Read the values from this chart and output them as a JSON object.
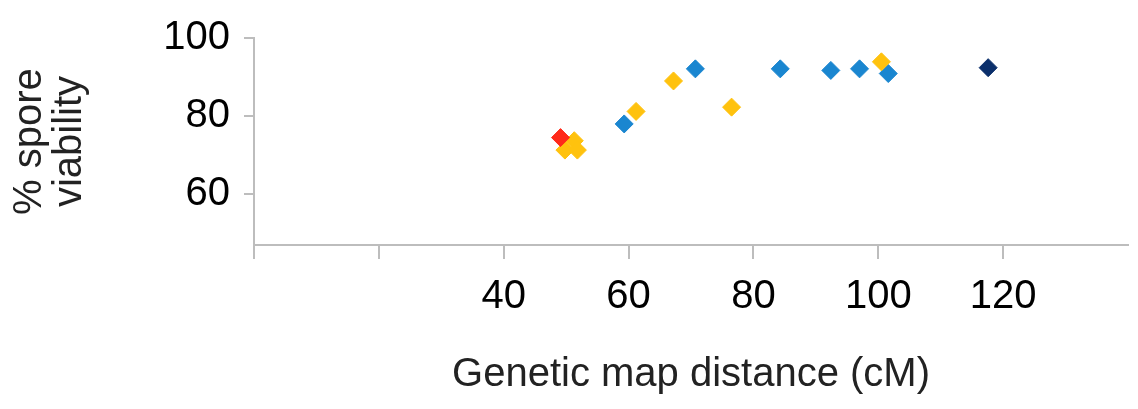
{
  "chart_data": {
    "type": "scatter",
    "xlabel": "Genetic map distance (cM)",
    "ylabel": "% spore viability",
    "xlim": [
      0,
      140
    ],
    "xticks": [
      {
        "value": 0,
        "label": null
      },
      {
        "value": 20,
        "label": null
      },
      40,
      60,
      80,
      100,
      120
    ],
    "ylim": [
      47,
      100
    ],
    "yticks": [
      60,
      80,
      100
    ],
    "grid": false,
    "legend": false,
    "marker": "diamond",
    "series": [
      {
        "color": "#ff2a1a",
        "x": [
          49.1
        ],
        "values": [
          74.5
        ]
      },
      {
        "color": "#ffc20e",
        "x": [
          51.3,
          49.8,
          51.8,
          61.2,
          67.2,
          76.5,
          100.5
        ],
        "values": [
          73.7,
          71.3,
          71.3,
          81.2,
          89.0,
          82.3,
          93.9
        ]
      },
      {
        "color": "#1a86d0",
        "x": [
          59.3,
          70.7,
          84.3,
          92.4,
          97.0,
          101.6
        ],
        "values": [
          78.0,
          92.1,
          92.1,
          91.7,
          92.1,
          90.9
        ]
      },
      {
        "color": "#0b2f6b",
        "x": [
          117.6
        ],
        "values": [
          92.4
        ]
      }
    ]
  }
}
